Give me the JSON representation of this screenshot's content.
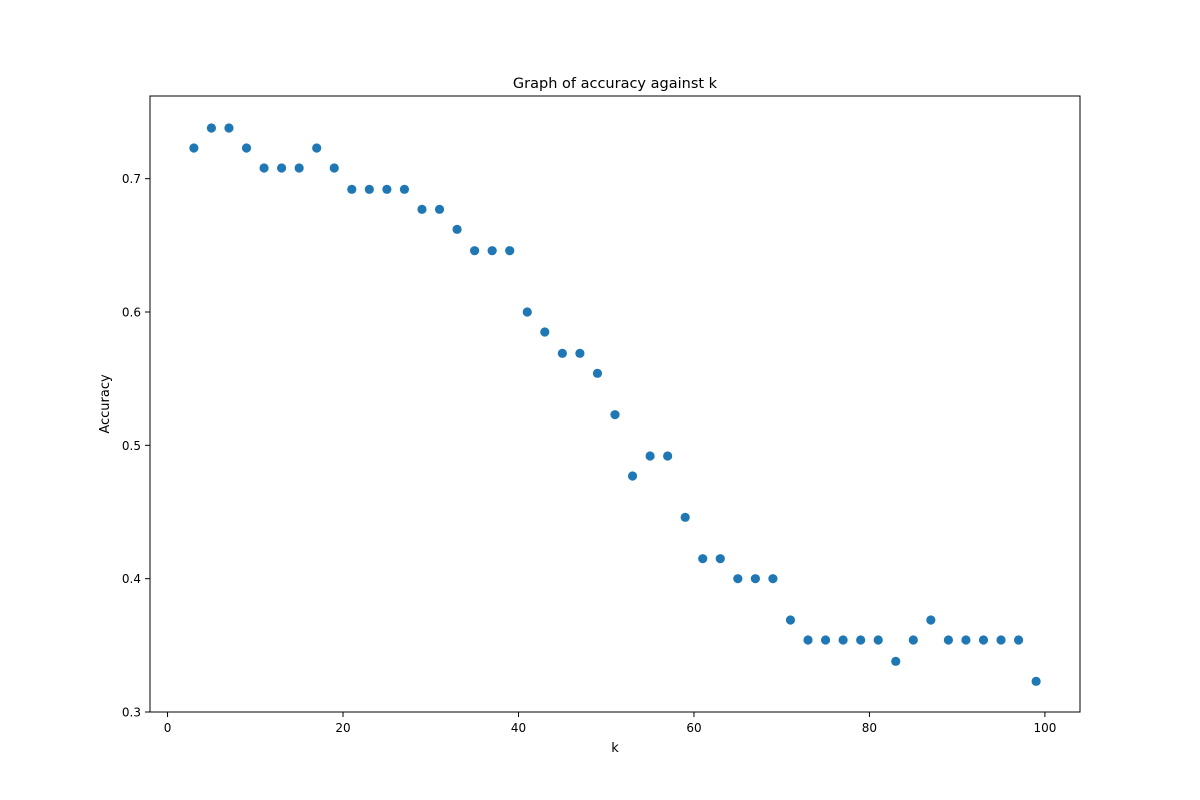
{
  "chart_data": {
    "type": "scatter",
    "title": "Graph of accuracy against k",
    "xlabel": "k",
    "ylabel": "Accuracy",
    "xlim": [
      -2,
      104
    ],
    "ylim": [
      0.3,
      0.762
    ],
    "xticks": [
      0,
      20,
      40,
      60,
      80,
      100
    ],
    "yticks": [
      0.3,
      0.4,
      0.5,
      0.6,
      0.7
    ],
    "xtick_labels": [
      "0",
      "20",
      "40",
      "60",
      "80",
      "100"
    ],
    "ytick_labels": [
      "0.3",
      "0.4",
      "0.5",
      "0.6",
      "0.7"
    ],
    "grid": false,
    "marker_color": "#1f77b4",
    "series": [
      {
        "x": [
          3,
          5,
          7,
          9,
          11,
          13,
          15,
          17,
          19,
          21,
          23,
          25,
          27,
          29,
          31,
          33,
          35,
          37,
          39,
          41,
          43,
          45,
          47,
          49,
          51,
          53,
          55,
          57,
          59,
          61,
          63,
          65,
          67,
          69,
          71,
          73,
          75,
          77,
          79,
          81,
          83,
          85,
          87,
          89,
          91,
          93,
          95,
          97,
          99
        ],
        "y": [
          0.723,
          0.738,
          0.738,
          0.723,
          0.708,
          0.708,
          0.708,
          0.723,
          0.708,
          0.692,
          0.692,
          0.692,
          0.692,
          0.677,
          0.677,
          0.662,
          0.646,
          0.646,
          0.646,
          0.6,
          0.585,
          0.569,
          0.569,
          0.554,
          0.523,
          0.477,
          0.492,
          0.492,
          0.446,
          0.415,
          0.415,
          0.4,
          0.4,
          0.4,
          0.369,
          0.354,
          0.354,
          0.354,
          0.354,
          0.354,
          0.338,
          0.354,
          0.369,
          0.354,
          0.354,
          0.354,
          0.354,
          0.354,
          0.323
        ]
      }
    ]
  }
}
